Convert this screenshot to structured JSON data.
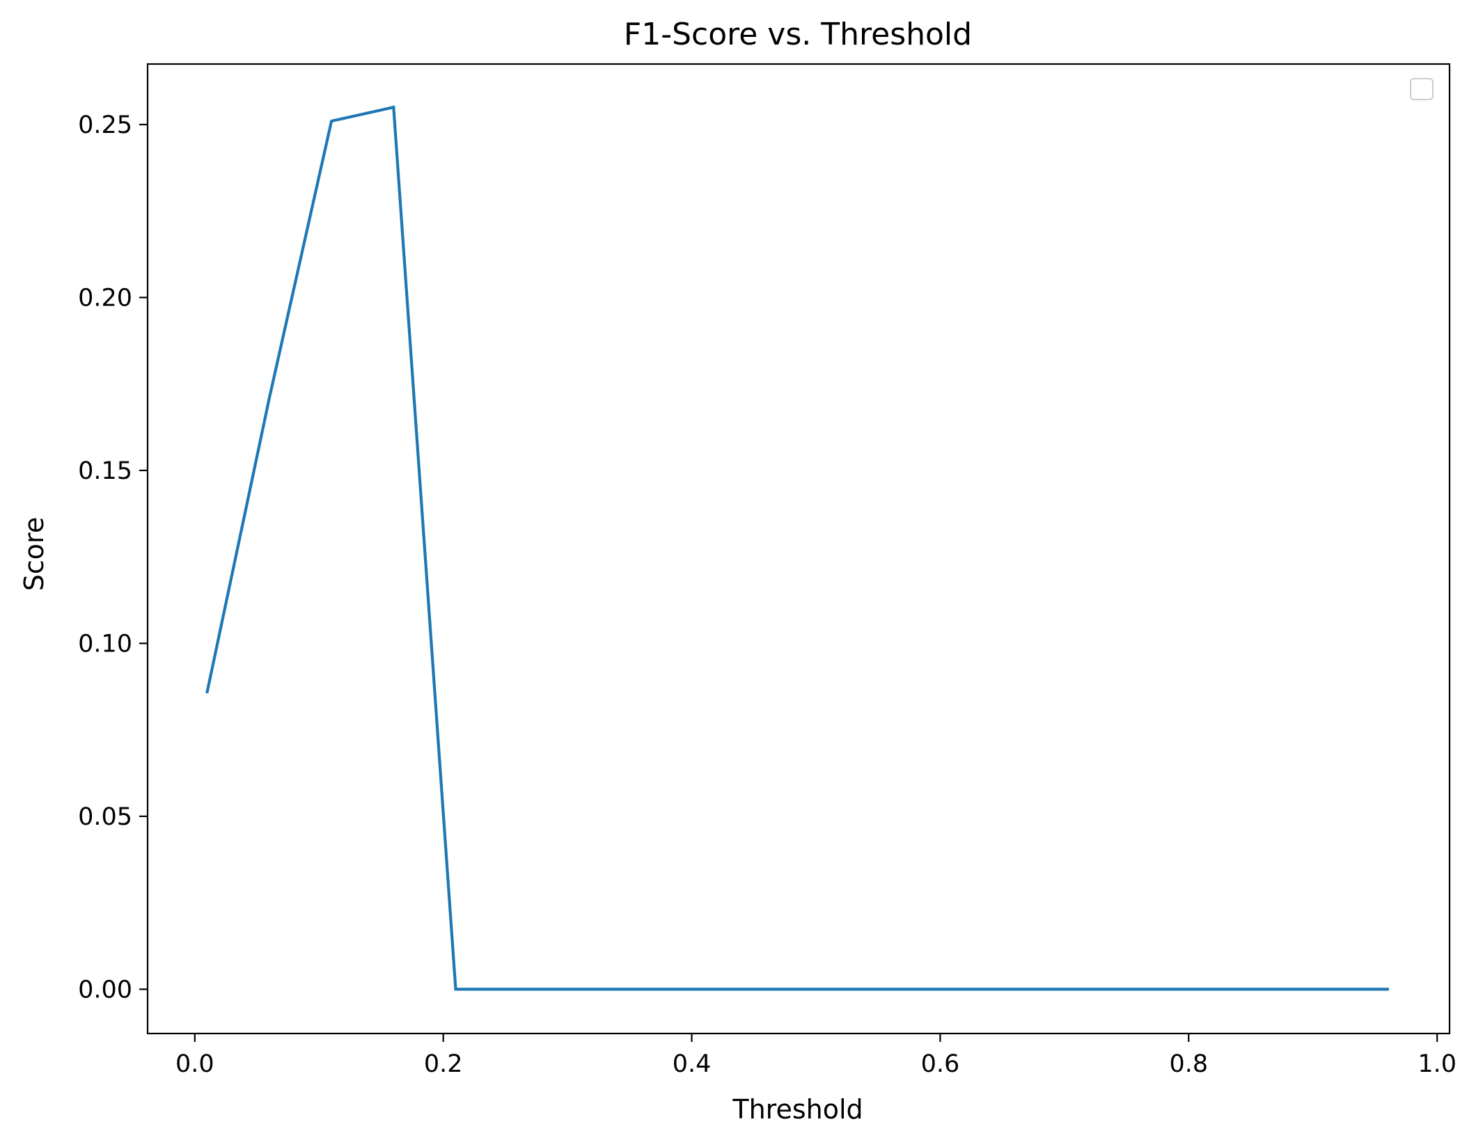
{
  "chart_data": {
    "type": "line",
    "title": "F1-Score vs. Threshold",
    "xlabel": "Threshold",
    "ylabel": "Score",
    "xlim": [
      -0.038,
      1.01
    ],
    "ylim": [
      -0.0128,
      0.2675
    ],
    "xticks": [
      0.0,
      0.2,
      0.4,
      0.6,
      0.8,
      1.0
    ],
    "xtick_labels": [
      "0.0",
      "0.2",
      "0.4",
      "0.6",
      "0.8",
      "1.0"
    ],
    "yticks": [
      0.0,
      0.05,
      0.1,
      0.15,
      0.2,
      0.25
    ],
    "ytick_labels": [
      "0.00",
      "0.05",
      "0.10",
      "0.15",
      "0.20",
      "0.25"
    ],
    "grid": false,
    "legend": {
      "placement": "upper-right",
      "entries": []
    },
    "series": [
      {
        "color": "#1f77b4",
        "x": [
          0.01,
          0.06,
          0.11,
          0.16,
          0.21,
          0.26,
          0.31,
          0.36,
          0.41,
          0.46,
          0.51,
          0.56,
          0.61,
          0.66,
          0.71,
          0.76,
          0.81,
          0.86,
          0.91,
          0.96
        ],
        "y": [
          0.086,
          0.171,
          0.251,
          0.255,
          0.0,
          0.0,
          0.0,
          0.0,
          0.0,
          0.0,
          0.0,
          0.0,
          0.0,
          0.0,
          0.0,
          0.0,
          0.0,
          0.0,
          0.0,
          0.0
        ]
      }
    ]
  }
}
